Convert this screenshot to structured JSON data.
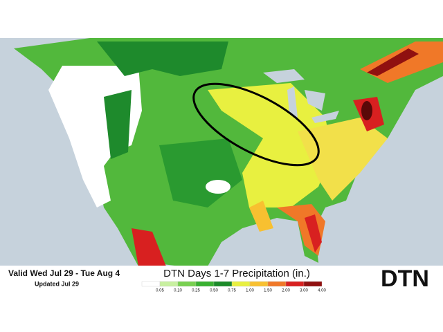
{
  "header": {
    "valid": "Valid Wed Jul 29 - Tue Aug 4",
    "updated": "Updated Jul 29"
  },
  "title": "DTN Days 1-7 Precipitation (in.)",
  "legend": [
    {
      "label": "0.05",
      "color": "#ffffff"
    },
    {
      "label": "0.10",
      "color": "#c8f0a0"
    },
    {
      "label": "0.25",
      "color": "#78d050"
    },
    {
      "label": "0.50",
      "color": "#38b030"
    },
    {
      "label": "0.75",
      "color": "#1a8a28"
    },
    {
      "label": "1.00",
      "color": "#e8f040"
    },
    {
      "label": "1.50",
      "color": "#f8c030"
    },
    {
      "label": "2.00",
      "color": "#f07828"
    },
    {
      "label": "3.00",
      "color": "#d82020"
    },
    {
      "label": "4.00",
      "color": "#901010"
    }
  ],
  "logo": "DTN"
}
